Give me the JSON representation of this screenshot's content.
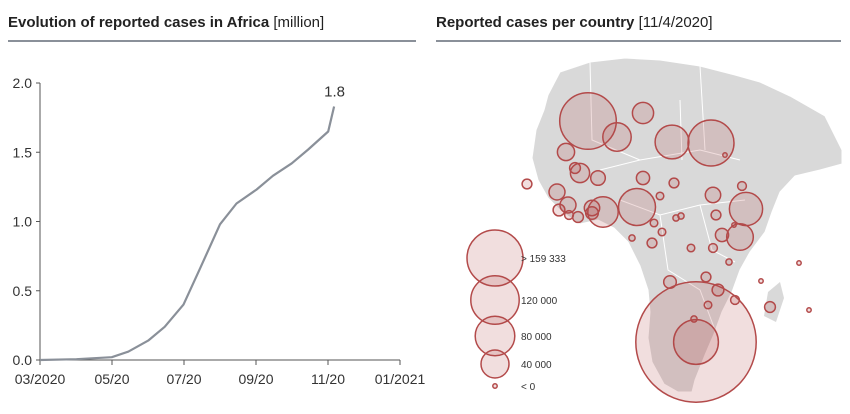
{
  "chart_data": [
    {
      "type": "line",
      "title": "Evolution of reported cases in Africa",
      "title_unit": "[million]",
      "xlabel": "",
      "ylabel": "",
      "x_tick_labels": [
        "03/2020",
        "05/20",
        "07/20",
        "09/20",
        "11/20",
        "01/2021"
      ],
      "y_tick_labels": [
        "0.0",
        "0.5",
        "1.0",
        "1.5",
        "2.0"
      ],
      "ylim": [
        0,
        2.0
      ],
      "xlim": [
        "2020-03",
        "2021-01"
      ],
      "end_label": "1.8",
      "line_color": "#8a9099",
      "grid": false,
      "x": [
        "2020-03",
        "2020-04",
        "2020-05",
        "2020-05-15",
        "2020-06",
        "2020-06-15",
        "2020-07",
        "2020-07-15",
        "2020-08",
        "2020-08-15",
        "2020-09",
        "2020-09-15",
        "2020-10",
        "2020-10-15",
        "2020-11",
        "2020-11-06"
      ],
      "values": [
        0.0,
        0.006,
        0.02,
        0.06,
        0.14,
        0.24,
        0.4,
        0.66,
        0.98,
        1.13,
        1.23,
        1.33,
        1.42,
        1.52,
        1.65,
        1.83
      ]
    },
    {
      "type": "map",
      "title": "Reported cases per country",
      "title_unit": "[11/4/2020]",
      "bubble_color": "#b34a4a",
      "land_color": "#d9d9d9",
      "legend": [
        {
          "label": "> 159 333",
          "value": 160000
        },
        {
          "label": "120 000",
          "value": 120000
        },
        {
          "label": "80 000",
          "value": 80000
        },
        {
          "label": "40 000",
          "value": 40000
        },
        {
          "label": "< 0",
          "value": 0
        }
      ],
      "bubbles": [
        {
          "value": 163000
        },
        {
          "value": 23000
        },
        {
          "value": 41000
        },
        {
          "value": 58000
        },
        {
          "value": 108000
        },
        {
          "value": 47000
        },
        {
          "value": 70000
        },
        {
          "value": 56000
        },
        {
          "value": 36000
        },
        {
          "value": 102000
        },
        {
          "value": 15000
        },
        {
          "value": 19000
        },
        {
          "value": 6000
        },
        {
          "value": 11000
        },
        {
          "value": 9000
        },
        {
          "value": 5000
        },
        {
          "value": 1000
        },
        {
          "value": 12000
        },
        {
          "value": 4000
        },
        {
          "value": 3000
        },
        {
          "value": 2000
        },
        {
          "value": 5000
        },
        {
          "value": 13000
        },
        {
          "value": 13000
        },
        {
          "value": 7000
        },
        {
          "value": 4000
        },
        {
          "value": 8000
        },
        {
          "value": 6000
        },
        {
          "value": 3000
        },
        {
          "value": 2000
        },
        {
          "value": 12000
        },
        {
          "value": 3000
        },
        {
          "value": 5000
        },
        {
          "value": 2000
        },
        {
          "value": 9000
        },
        {
          "value": 4000
        },
        {
          "value": 3000
        },
        {
          "value": 2000
        },
        {
          "value": 1000
        },
        {
          "value": 5000
        },
        {
          "value": 7000
        },
        {
          "value": 8000
        },
        {
          "value": 3000
        },
        {
          "value": 2000
        },
        {
          "value": 4000
        },
        {
          "value": 6000
        },
        {
          "value": 740000
        },
        {
          "value": 1000
        },
        {
          "value": 1000
        },
        {
          "value": 1000
        },
        {
          "value": 5000
        }
      ]
    }
  ]
}
